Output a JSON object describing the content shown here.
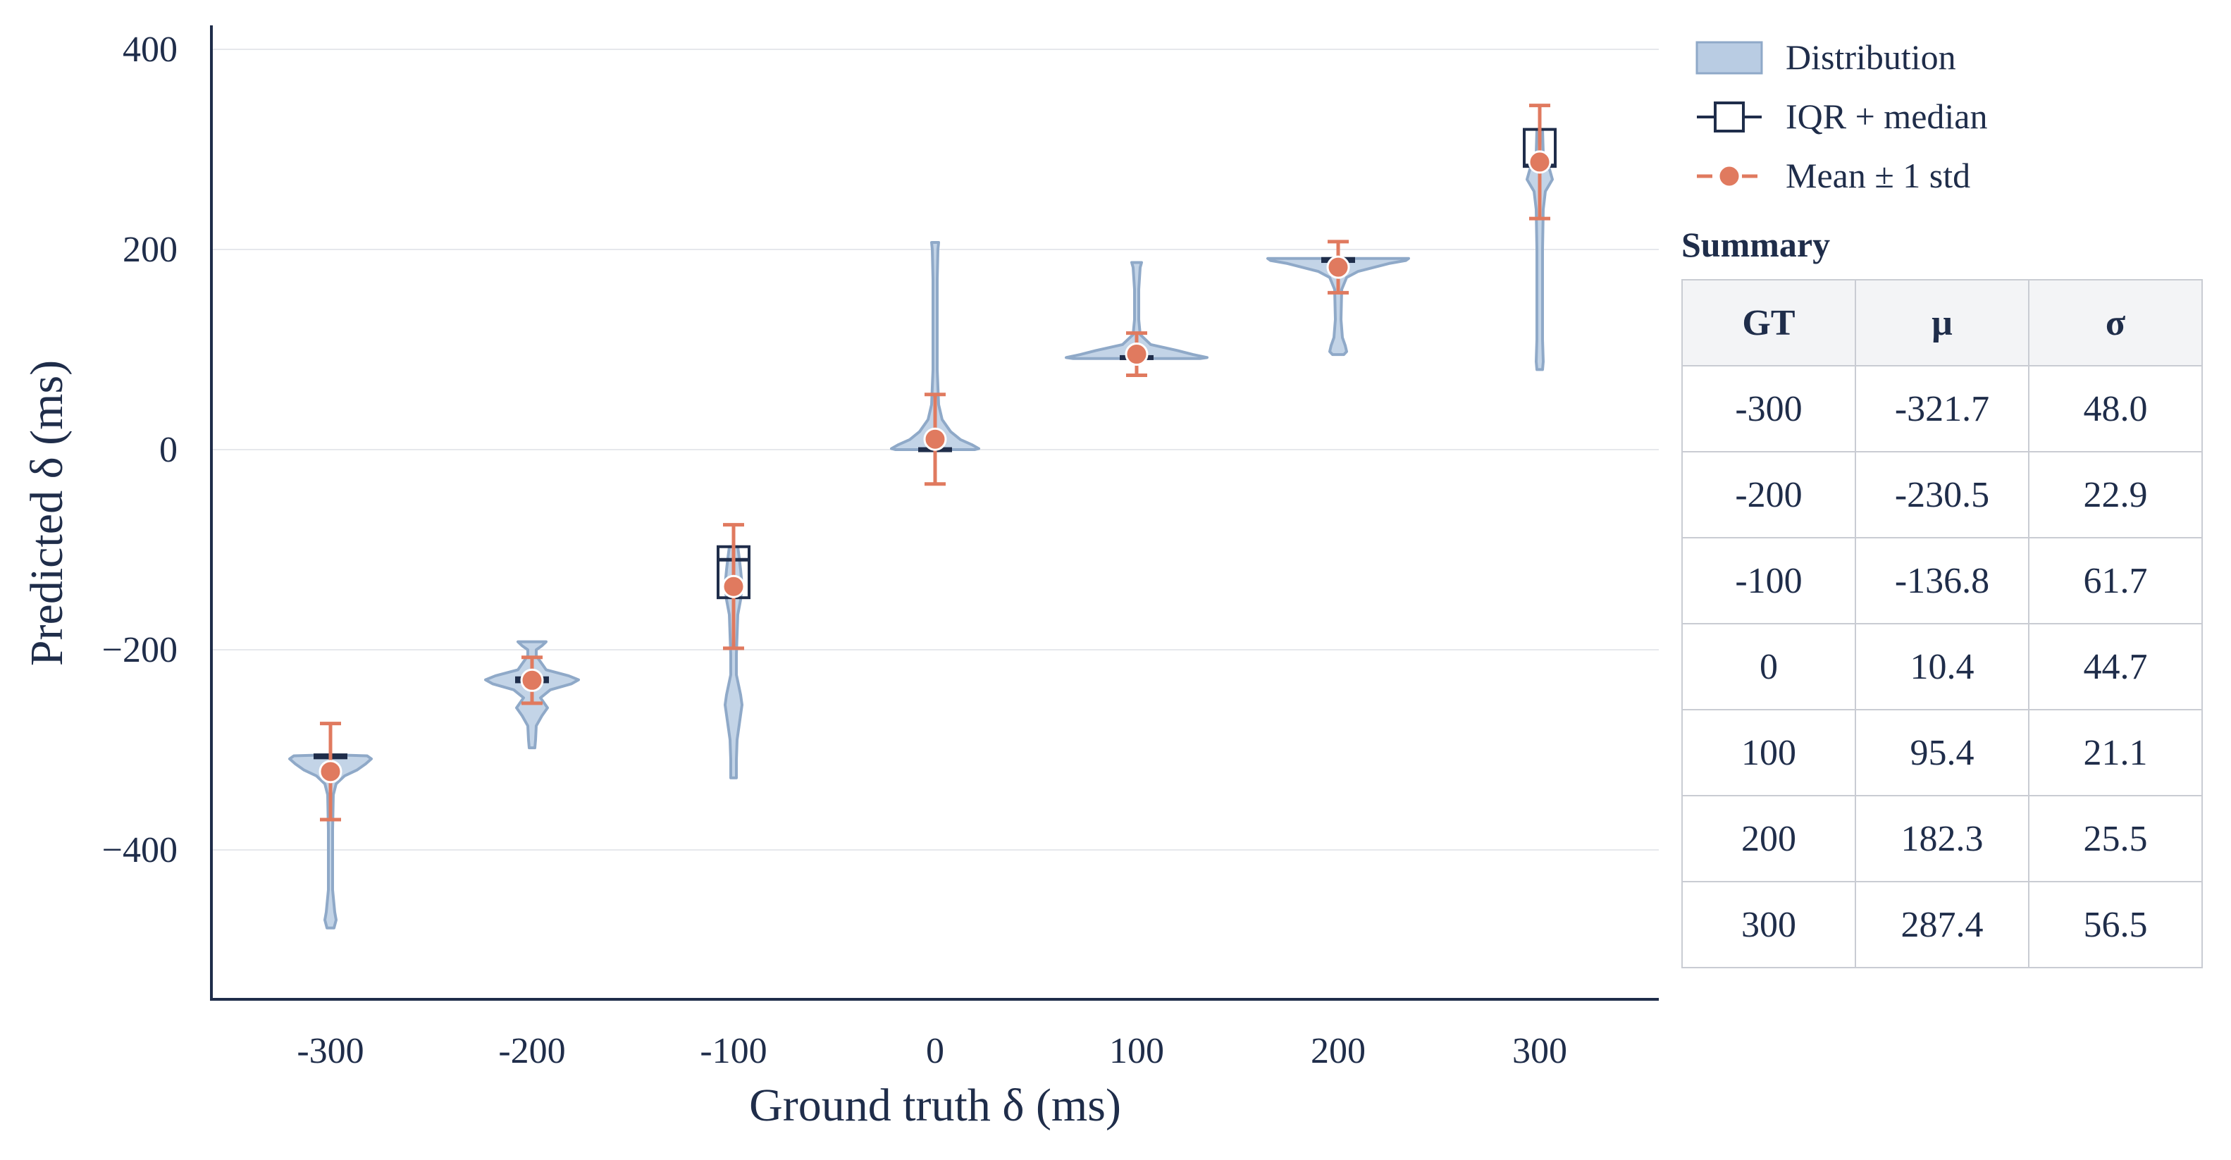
{
  "chart_data": {
    "type": "violin",
    "xlabel": "Ground truth δ (ms)",
    "ylabel": "Predicted δ (ms)",
    "ylim": [
      -545,
      420
    ],
    "xlim": [
      -355,
      355
    ],
    "yticks": [
      400,
      200,
      0,
      -200,
      -400
    ],
    "ytick_labels": [
      "400",
      "200",
      "0",
      "−200",
      "−400"
    ],
    "xticks": [
      -300,
      -200,
      -100,
      0,
      100,
      200,
      300
    ],
    "xtick_labels": [
      "-300",
      "-200",
      "-100",
      "0",
      "100",
      "200",
      "300"
    ],
    "grid": "horizontal",
    "legend": {
      "placement": "top-right (outside plot)",
      "entries": [
        "Distribution",
        "IQR + median",
        "Mean ± 1 std"
      ]
    },
    "colors": {
      "distribution_fill": "#b9cce3",
      "distribution_edge": "#8fa9c8",
      "iqr_box": "#1f2d4a",
      "mean_marker": "#e07a5f",
      "axis": "#1f2d4a",
      "grid": "#e6e8ec"
    },
    "series": [
      {
        "gt": -300,
        "mean": -321.7,
        "std": 48.0,
        "iqr": [
          -308,
          -305
        ],
        "median": -306,
        "min": -478,
        "max": -305
      },
      {
        "gt": -200,
        "mean": -230.5,
        "std": 22.9,
        "iqr": [
          -232,
          -228
        ],
        "median": -230,
        "min": -298,
        "max": -192
      },
      {
        "gt": -100,
        "mean": -136.8,
        "std": 61.7,
        "iqr": [
          -148,
          -97
        ],
        "median": -110,
        "min": -328,
        "max": -97
      },
      {
        "gt": 0,
        "mean": 10.4,
        "std": 44.7,
        "iqr": [
          0,
          1
        ],
        "median": 0,
        "min": 0,
        "max": 207
      },
      {
        "gt": 100,
        "mean": 95.4,
        "std": 21.1,
        "iqr": [
          91,
          93
        ],
        "median": 92,
        "min": 91,
        "max": 187
      },
      {
        "gt": 200,
        "mean": 182.3,
        "std": 25.5,
        "iqr": [
          188,
          191
        ],
        "median": 189,
        "min": 95,
        "max": 191
      },
      {
        "gt": 300,
        "mean": 287.4,
        "std": 56.5,
        "iqr": [
          283,
          320
        ],
        "median": 284,
        "min": 80,
        "max": 320
      }
    ]
  },
  "summary": {
    "title": "Summary",
    "headers": [
      "GT",
      "μ",
      "σ"
    ],
    "rows": [
      [
        "-300",
        "-321.7",
        "48.0"
      ],
      [
        "-200",
        "-230.5",
        "22.9"
      ],
      [
        "-100",
        "-136.8",
        "61.7"
      ],
      [
        "0",
        "10.4",
        "44.7"
      ],
      [
        "100",
        "95.4",
        "21.1"
      ],
      [
        "200",
        "182.3",
        "25.5"
      ],
      [
        "300",
        "287.4",
        "56.5"
      ]
    ]
  }
}
